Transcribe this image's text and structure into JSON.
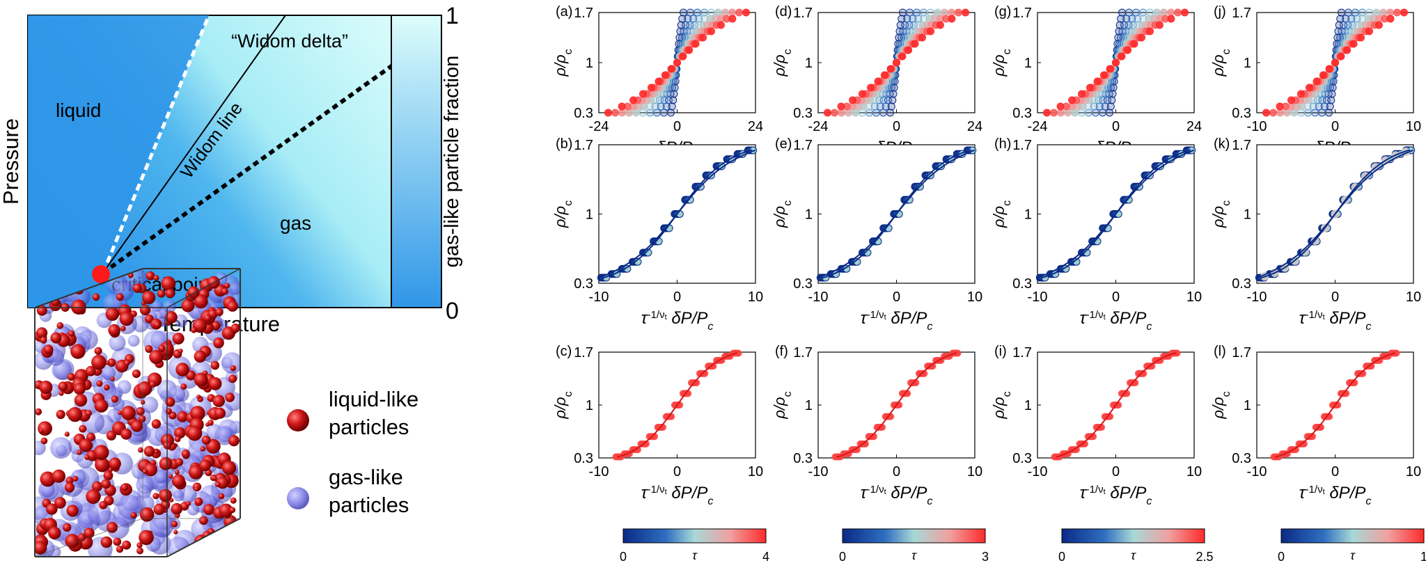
{
  "phase_diagram": {
    "xlabel": "Temperature",
    "ylabel": "Pressure",
    "labels": {
      "liquid": "liquid",
      "gas": "gas",
      "widom_delta": "“Widom delta”",
      "widom_line": "Widom line",
      "critical_point": "critical point"
    },
    "colorbar": {
      "label": "gas-like particle fraction",
      "max": "1",
      "min": "0"
    },
    "colors": {
      "liquid": "#2f96e8",
      "gas": "#dcfdfb",
      "critical_point": "#ff1a1a"
    }
  },
  "box_legend": {
    "liquid_line1": "liquid-like",
    "liquid_line2": "particles",
    "gas_line1": "gas-like",
    "gas_line2": "particles",
    "colors": {
      "liquid_like": "#c41414",
      "gas_like": "#7a7ae6"
    }
  },
  "scaling_panels": {
    "ytick_labels": [
      "0.3",
      "1",
      "1.7"
    ],
    "ylabel_rho": "ρ/ρ",
    "ylabel_sub": "c",
    "xlabel_dp": "δP/P",
    "xlabel_sub": "c",
    "xlabel_tau": "τ",
    "xlabel_exp": "-1/ν",
    "xlabel_exp_sub": "t",
    "columns": [
      {
        "letters": [
          "(a)",
          "(b)",
          "(c)"
        ],
        "raw_xticks": [
          "-24",
          "0",
          "24"
        ],
        "scaled_xticks": [
          "-10",
          "0",
          "10"
        ],
        "tau_max": "4",
        "tau_min": "0"
      },
      {
        "letters": [
          "(d)",
          "(e)",
          "(f)"
        ],
        "raw_xticks": [
          "-24",
          "0",
          "24"
        ],
        "scaled_xticks": [
          "-10",
          "0",
          "10"
        ],
        "tau_max": "3",
        "tau_min": "0"
      },
      {
        "letters": [
          "(g)",
          "(h)",
          "(i)"
        ],
        "raw_xticks": [
          "-24",
          "0",
          "24"
        ],
        "scaled_xticks": [
          "-10",
          "0",
          "10"
        ],
        "tau_max": "2.5",
        "tau_min": "0"
      },
      {
        "letters": [
          "(j)",
          "(k)",
          "(l)"
        ],
        "raw_xticks": [
          "-10",
          "0",
          "10"
        ],
        "scaled_xticks": [
          "-10",
          "0",
          "10"
        ],
        "tau_max": "1",
        "tau_min": "0"
      }
    ],
    "colorbar_label": "τ",
    "colormap": [
      "#0a2a86",
      "#2f6fc0",
      "#a8d8d8",
      "#f0a0a0",
      "#ff2a2a"
    ]
  },
  "chart_data": [
    {
      "type": "area",
      "title": "",
      "xlabel": "Temperature",
      "ylabel": "Pressure",
      "regions": [
        "liquid",
        "gas"
      ],
      "annotations": [
        "“Widom delta”",
        "Widom line",
        "critical point"
      ],
      "colorbar": {
        "label": "gas-like particle fraction",
        "range": [
          0,
          1
        ]
      }
    },
    {
      "type": "scatter",
      "panels": [
        "(a)",
        "(d)",
        "(g)",
        "(j)"
      ],
      "xlabel": "δP/P_c",
      "ylabel": "ρ/ρ_c",
      "xlim_by_panel": [
        [
          -24,
          24
        ],
        [
          -24,
          24
        ],
        [
          -24,
          24
        ],
        [
          -10,
          10
        ]
      ],
      "ylim": [
        0.3,
        1.7
      ],
      "colorbar": {
        "label": "τ",
        "range_by_column": [
          [
            0,
            4
          ],
          [
            0,
            3
          ],
          [
            0,
            2.5
          ],
          [
            0,
            1
          ]
        ]
      }
    },
    {
      "type": "scatter",
      "panels": [
        "(b)",
        "(e)",
        "(h)",
        "(k)",
        "(c)",
        "(f)",
        "(i)",
        "(l)"
      ],
      "xlabel": "τ^(-1/ν_t) δP/P_c",
      "ylabel": "ρ/ρ_c",
      "xlim": [
        -10,
        10
      ],
      "ylim": [
        0.3,
        1.7
      ]
    }
  ]
}
